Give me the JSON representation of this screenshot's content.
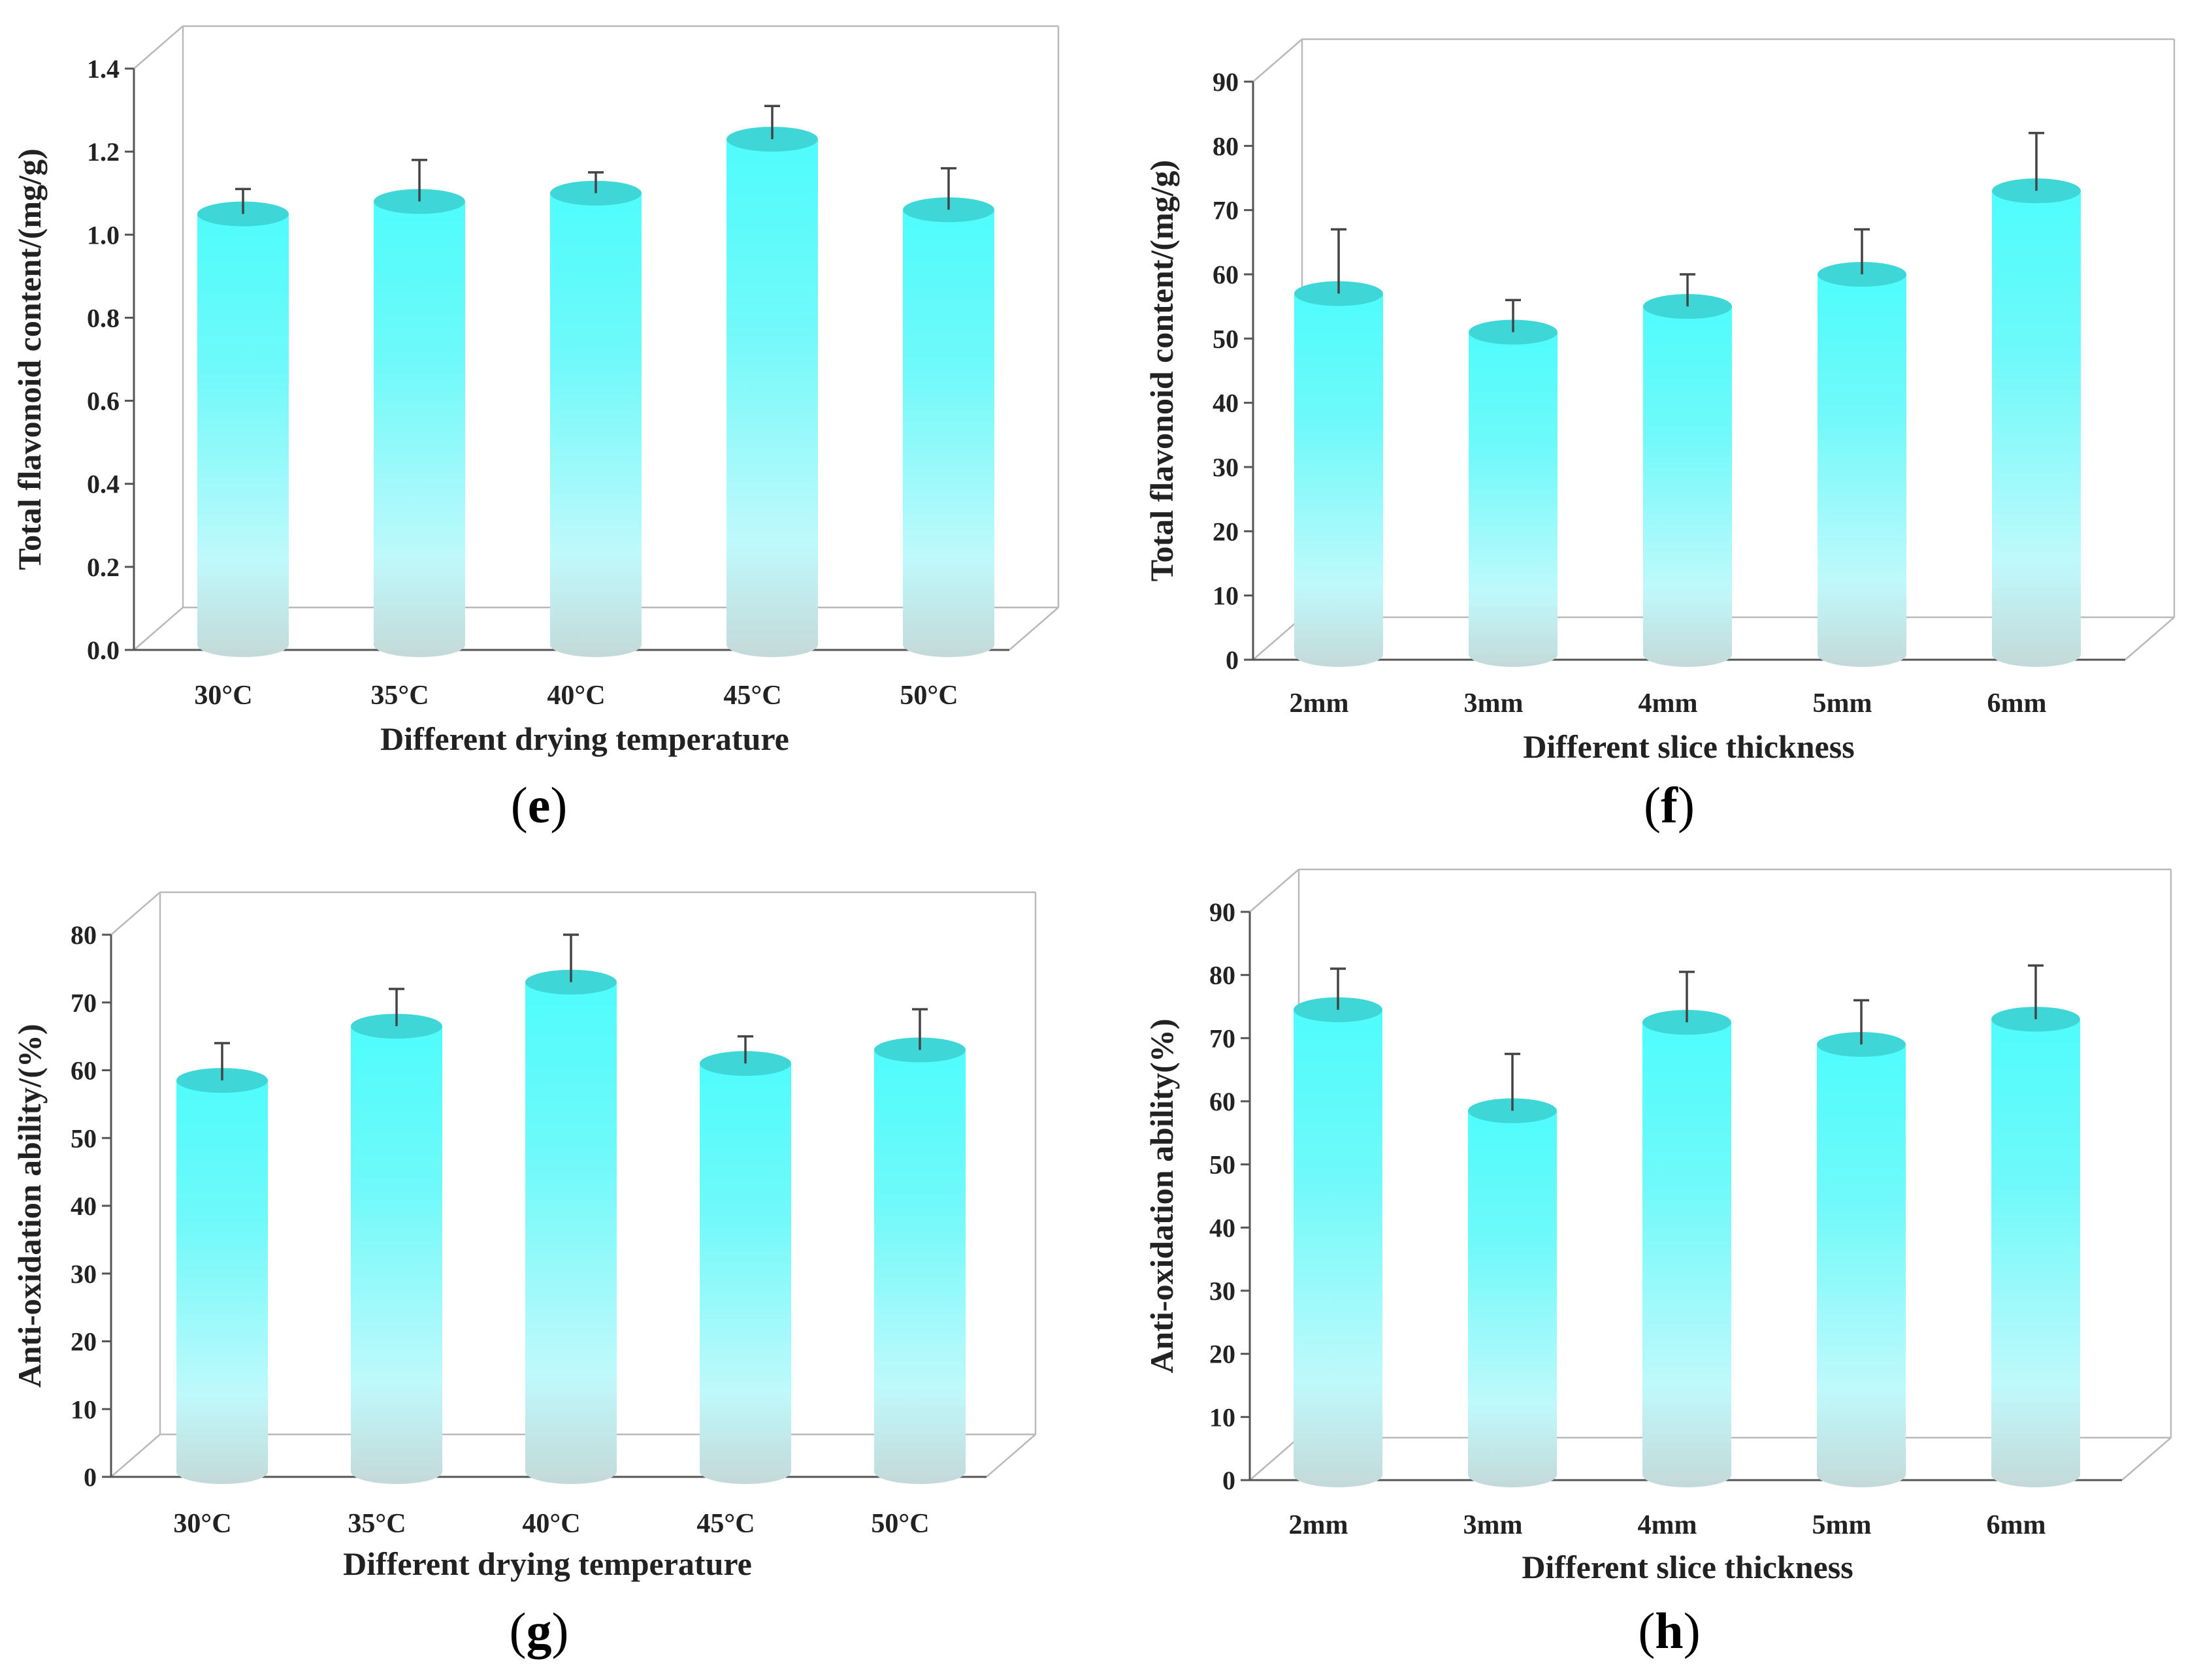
{
  "figure": {
    "panel_labels": [
      "e",
      "f",
      "g",
      "h"
    ],
    "bar_color_top": "#4ffcfc",
    "bar_color_mid": "#bff9fb",
    "bar_color_bottom": "#c4d9d9"
  },
  "chart_data": [
    {
      "id": "e",
      "type": "bar",
      "categories": [
        "30°C",
        "35°C",
        "40°C",
        "45°C",
        "50°C"
      ],
      "values": [
        1.05,
        1.08,
        1.1,
        1.23,
        1.06
      ],
      "errors": [
        0.06,
        0.1,
        0.05,
        0.08,
        0.1
      ],
      "xlabel": "Different drying temperature",
      "ylabel": "Total flavonoid content/(mg/g)",
      "ylim": [
        0,
        1.4
      ],
      "yticks": [
        "0.0",
        "0.2",
        "0.4",
        "0.6",
        "0.8",
        "1.0",
        "1.2",
        "1.4"
      ],
      "panel_label": "e"
    },
    {
      "id": "f",
      "type": "bar",
      "categories": [
        "2mm",
        "3mm",
        "4mm",
        "5mm",
        "6mm"
      ],
      "values": [
        57,
        51,
        55,
        60,
        73
      ],
      "errors": [
        10,
        5,
        5,
        7,
        9
      ],
      "xlabel": "Different slice thickness",
      "ylabel": "Total flavonoid content/(mg/g)",
      "ylim": [
        0,
        90
      ],
      "yticks": [
        "0",
        "10",
        "20",
        "30",
        "40",
        "50",
        "60",
        "70",
        "80",
        "90"
      ],
      "panel_label": "f"
    },
    {
      "id": "g",
      "type": "bar",
      "categories": [
        "30°C",
        "35°C",
        "40°C",
        "45°C",
        "50°C"
      ],
      "values": [
        58.5,
        66.5,
        73,
        61,
        63
      ],
      "errors": [
        5.5,
        5.5,
        7,
        4,
        6
      ],
      "xlabel": "Different drying temperature",
      "ylabel": "Anti-oxidation ability/(%)",
      "ylim": [
        0,
        80
      ],
      "yticks": [
        "0",
        "10",
        "20",
        "30",
        "40",
        "50",
        "60",
        "70",
        "80"
      ],
      "panel_label": "g"
    },
    {
      "id": "h",
      "type": "bar",
      "categories": [
        "2mm",
        "3mm",
        "4mm",
        "5mm",
        "6mm"
      ],
      "values": [
        74.5,
        58.5,
        72.5,
        69,
        73
      ],
      "errors": [
        6.5,
        9,
        8,
        7,
        8.5
      ],
      "xlabel": "Different slice thickness",
      "ylabel": "Anti-oxidation ability(%)",
      "ylim": [
        0,
        90
      ],
      "yticks": [
        "0",
        "10",
        "20",
        "30",
        "40",
        "50",
        "60",
        "70",
        "80",
        "90"
      ],
      "panel_label": "h"
    }
  ]
}
